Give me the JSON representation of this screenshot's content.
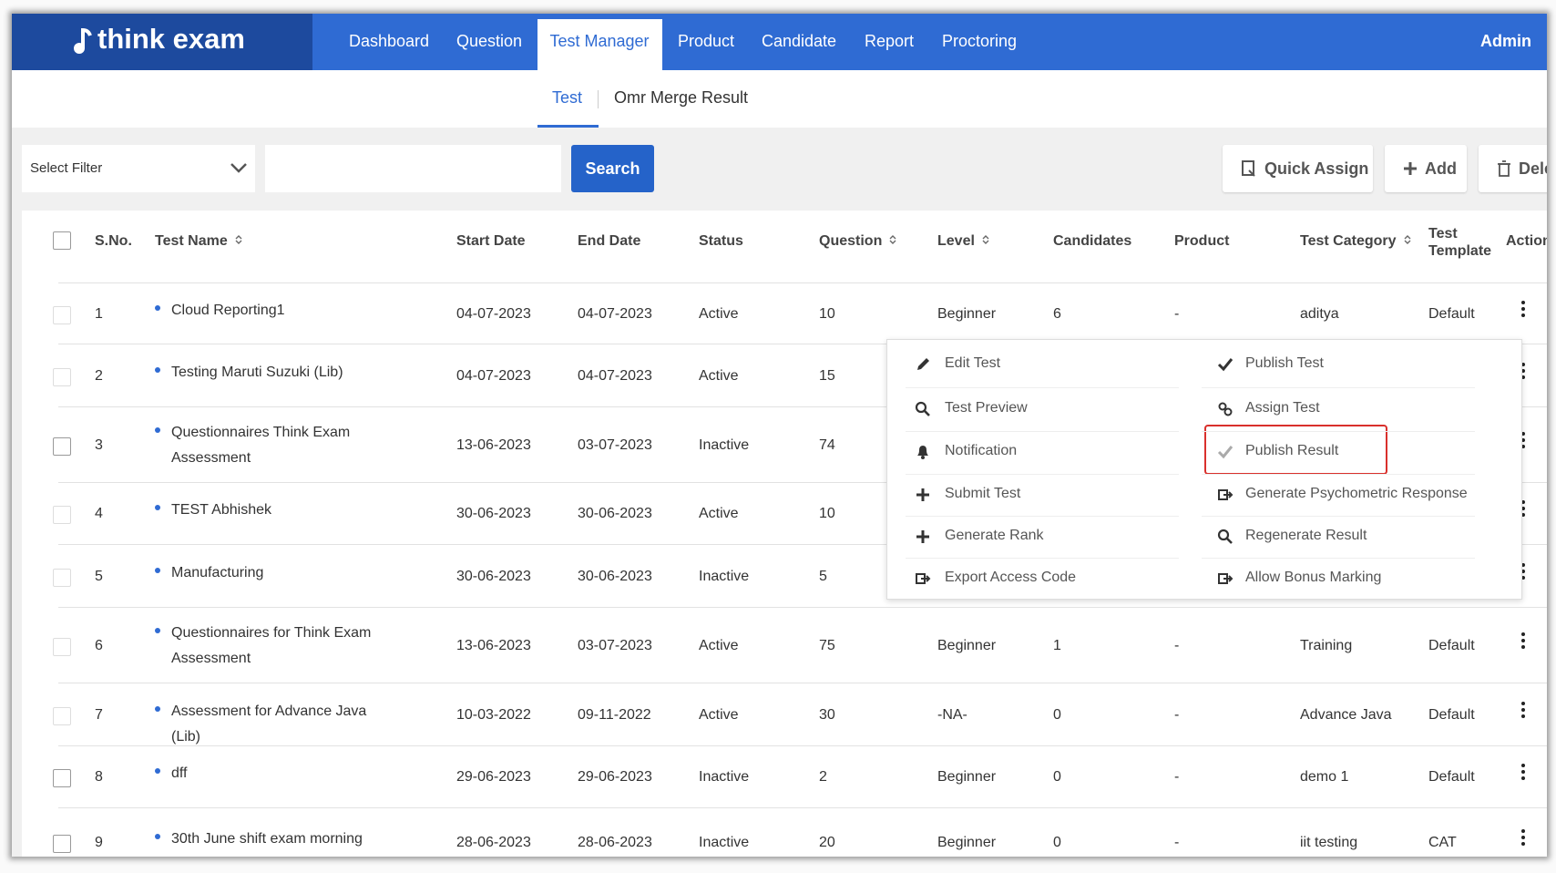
{
  "nav": {
    "logo": "think exam",
    "items": [
      "Dashboard",
      "Question",
      "Test Manager",
      "Product",
      "Candidate",
      "Report",
      "Proctoring"
    ],
    "user": "Admin"
  },
  "tabs": [
    "Test",
    "Omr Merge Result"
  ],
  "toolbar": {
    "filter": "Select Filter",
    "search": "Search",
    "buttons": [
      "Quick Assign",
      "Add",
      "Delete"
    ]
  },
  "table": {
    "columns": [
      "S.No.",
      "Test Name",
      "Start Date",
      "End Date",
      "Status",
      "Question",
      "Level",
      "Candidates",
      "Product",
      "Test Category",
      "Test Template",
      "Action"
    ],
    "rows": [
      [
        1,
        "Cloud Reporting1",
        "04-07-2023",
        "04-07-2023",
        "Active",
        10,
        "Beginner",
        6,
        "-",
        "aditya",
        "Default"
      ],
      [
        2,
        "Testing Maruti Suzuki (Lib)",
        "04-07-2023",
        "04-07-2023",
        "Active",
        15
      ],
      [
        3,
        "Questionnaires Think Exam Assessment",
        "13-06-2023",
        "03-07-2023",
        "Inactive",
        74
      ],
      [
        4,
        "TEST Abhishek",
        "30-06-2023",
        "30-06-2023",
        "Active",
        10
      ],
      [
        5,
        "Manufacturing",
        "30-06-2023",
        "30-06-2023",
        "Inactive",
        5
      ],
      [
        6,
        "Questionnaires for Think Exam Assessment",
        "13-06-2023",
        "03-07-2023",
        "Active",
        75,
        "Beginner",
        1,
        "-",
        "Training",
        "Default"
      ],
      [
        7,
        "Assessment for Advance Java (Lib)",
        "10-03-2022",
        "09-11-2022",
        "Active",
        30,
        "-NA-",
        0,
        "-",
        "Advance Java",
        "Default"
      ],
      [
        8,
        "dff",
        "29-06-2023",
        "29-06-2023",
        "Inactive",
        2,
        "Beginner",
        0,
        "-",
        "demo 1",
        "Default"
      ],
      [
        9,
        "30th June shift exam morning",
        "28-06-2023",
        "28-06-2023",
        "Inactive",
        20,
        "Beginner",
        0,
        "-",
        "iit testing",
        "CAT"
      ]
    ]
  },
  "menu": {
    "left": [
      "Edit Test",
      "Test Preview",
      "Notification",
      "Submit Test",
      "Generate Rank",
      "Export Access Code"
    ],
    "right": [
      "Publish Test",
      "Assign Test",
      "Publish Result",
      "Generate Psychometric Response",
      "Regenerate Result",
      "Allow Bonus Marking"
    ]
  }
}
